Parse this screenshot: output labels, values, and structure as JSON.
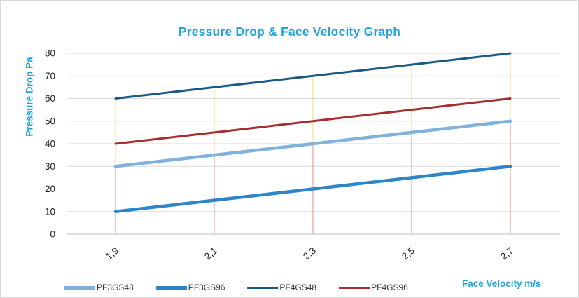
{
  "chart_data": {
    "type": "line",
    "title": "Pressure Drop  &  Face Velocity  Graph",
    "xlabel": "Face Velocity  m/s",
    "ylabel": "Pressure Drop  Pa",
    "categories": [
      "1,9",
      "2,1",
      "2,3",
      "2,5",
      "2,7"
    ],
    "ylim": [
      0,
      80
    ],
    "yticks": [
      0,
      10,
      20,
      30,
      40,
      50,
      60,
      70,
      80
    ],
    "grid": true,
    "legend": "bottom",
    "series": [
      {
        "name": "PF3GS48",
        "values": [
          30,
          35,
          40,
          45,
          50
        ],
        "color": "#7fb2dd"
      },
      {
        "name": "PF3GS96",
        "values": [
          10,
          15,
          20,
          25,
          30
        ],
        "color": "#2e86c8"
      },
      {
        "name": "PF4GS48",
        "values": [
          60,
          65,
          70,
          75,
          80
        ],
        "color": "#1c5a86"
      },
      {
        "name": "PF4GS96",
        "values": [
          40,
          45,
          50,
          55,
          60
        ],
        "color": "#a3302d"
      }
    ]
  }
}
